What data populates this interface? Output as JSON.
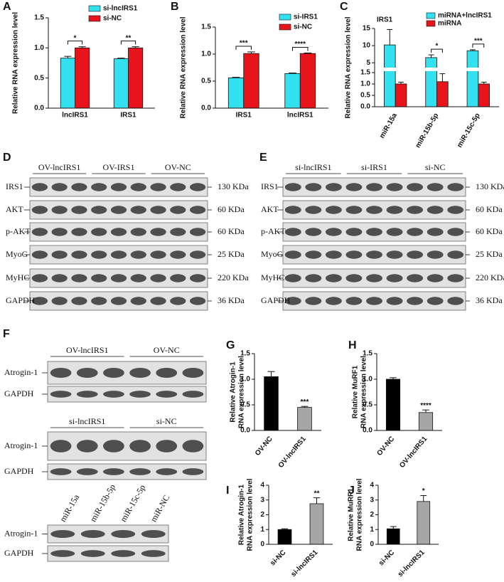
{
  "chart_data": [
    {
      "type": "bar",
      "panel": "A",
      "ylabel": "Relative RNA expression level",
      "categories": [
        "lncIRS1",
        "IRS1"
      ],
      "series": [
        {
          "name": "si-lncIRS1",
          "color": "#33e0f0",
          "values": [
            0.83,
            0.82
          ],
          "errors": [
            0.03,
            0.01
          ]
        },
        {
          "name": "si-NC",
          "color": "#e8141c",
          "values": [
            1.0,
            1.0
          ],
          "errors": [
            0.02,
            0.02
          ]
        }
      ],
      "ylim": [
        0,
        1.5
      ],
      "yticks": [
        {
          "value": 0,
          "label": "0.0"
        },
        {
          "value": 0.5,
          "label": "0.5"
        },
        {
          "value": 1,
          "label": "1.0"
        },
        {
          "value": 1.5,
          "label": "1.5"
        }
      ],
      "significance": [
        "*",
        "**"
      ],
      "legend": "top-right"
    },
    {
      "type": "bar",
      "panel": "B",
      "ylabel": "Relative RNA expression level",
      "categories": [
        "IRS1",
        "lncIRS1"
      ],
      "series": [
        {
          "name": "si-IRS1",
          "color": "#33e0f0",
          "values": [
            0.56,
            0.64
          ],
          "errors": [
            0.01,
            0.01
          ]
        },
        {
          "name": "si-NC",
          "color": "#e8141c",
          "values": [
            1.01,
            1.01
          ],
          "errors": [
            0.03,
            0.01
          ]
        }
      ],
      "ylim": [
        0,
        1.5
      ],
      "yticks": [
        {
          "value": 0,
          "label": "0.0"
        },
        {
          "value": 0.5,
          "label": "0.5"
        },
        {
          "value": 1,
          "label": "1.0"
        },
        {
          "value": 1.5,
          "label": "1.5"
        }
      ],
      "significance": [
        "***",
        "****"
      ],
      "legend": "top-right"
    },
    {
      "type": "bar",
      "panel": "C",
      "title": "IRS1",
      "ylabel": "Relative RNA expression level",
      "categories": [
        "miR-15a",
        "miR-15b-5p",
        "miR-15c-5p"
      ],
      "series": [
        {
          "name": "miRNA+lncIRS1",
          "color": "#33e0f0",
          "values": [
            10.2,
            6.5,
            8.5
          ],
          "errors": [
            4.5,
            0.8,
            0.3
          ]
        },
        {
          "name": "miRNA",
          "color": "#e8141c",
          "values": [
            1.0,
            1.1,
            1.0
          ],
          "errors": [
            0.08,
            0.35,
            0.08
          ]
        }
      ],
      "ylim": [
        0,
        1.5
      ],
      "yticks": [
        {
          "value": 0,
          "label": "0.0"
        },
        {
          "value": 0.5,
          "label": "0.5"
        },
        {
          "value": 1,
          "label": "1.0"
        },
        {
          "value": 1.5,
          "label": "1.5"
        }
      ],
      "ylim_upper": [
        4,
        15
      ],
      "yticks_upper": [
        5,
        10,
        15
      ],
      "significance": [
        null,
        "*",
        "***"
      ],
      "legend": "top-right"
    },
    {
      "type": "bar",
      "panel": "G",
      "ylabel": [
        "Relative Atrogin-1",
        "RNA expression level"
      ],
      "categories": [
        "OV-NC",
        "OV-lncIRS1"
      ],
      "values": [
        1.05,
        0.45
      ],
      "errors": [
        0.1,
        0.02
      ],
      "colors": [
        "#000000",
        "#a6a6a6"
      ],
      "ylim": [
        0,
        1.5
      ],
      "yticks": [
        {
          "value": 0,
          "label": "0.0"
        },
        {
          "value": 0.5,
          "label": "0.5"
        },
        {
          "value": 1,
          "label": "1.0"
        },
        {
          "value": 1.5,
          "label": "1.5"
        }
      ],
      "significance": [
        null,
        "***"
      ]
    },
    {
      "type": "bar",
      "panel": "H",
      "ylabel": [
        "Relative MuRF1",
        "RNA expression level"
      ],
      "categories": [
        "OV-NC",
        "OV-lncIRS1"
      ],
      "values": [
        1.0,
        0.35
      ],
      "errors": [
        0.03,
        0.05
      ],
      "colors": [
        "#000000",
        "#a6a6a6"
      ],
      "ylim": [
        0,
        1.5
      ],
      "yticks": [
        {
          "value": 0,
          "label": "0.0"
        },
        {
          "value": 0.5,
          "label": "0.5"
        },
        {
          "value": 1,
          "label": "1.0"
        },
        {
          "value": 1.5,
          "label": "1.5"
        }
      ],
      "significance": [
        null,
        "****"
      ]
    },
    {
      "type": "bar",
      "panel": "I",
      "ylabel": [
        "Relative Atrogin-1",
        "RNA expression level"
      ],
      "categories": [
        "si-NC",
        "si-lncIRS1"
      ],
      "values": [
        1.0,
        2.75
      ],
      "errors": [
        0.05,
        0.4
      ],
      "colors": [
        "#000000",
        "#a6a6a6"
      ],
      "ylim": [
        0,
        4
      ],
      "yticks": [
        0,
        1,
        2,
        3,
        4
      ],
      "significance": [
        null,
        "**"
      ]
    },
    {
      "type": "bar",
      "panel": "J",
      "ylabel": [
        "Relative MuRF1",
        "RNA expression level"
      ],
      "categories": [
        "si-NC",
        "si-lncIRS1"
      ],
      "values": [
        1.05,
        2.9
      ],
      "errors": [
        0.15,
        0.4
      ],
      "colors": [
        "#000000",
        "#a6a6a6"
      ],
      "ylim": [
        0,
        4
      ],
      "yticks": [
        0,
        1,
        2,
        3,
        4
      ],
      "significance": [
        null,
        "*"
      ]
    }
  ],
  "blots": [
    {
      "panel": "D",
      "sections": [
        {
          "groups": [
            "OV-lncIRS1",
            "OV-IRS1",
            "OV-NC"
          ],
          "rows": [
            "IRS1",
            "AKT",
            "p-AKT",
            "MyoG",
            "MyHC",
            "GAPDH"
          ],
          "sizes": [
            "130 KDa",
            "60 KDa",
            "60 KDa",
            "25 KDa",
            "220 KDa",
            "36 KDa"
          ]
        }
      ]
    },
    {
      "panel": "E",
      "sections": [
        {
          "groups": [
            "si-lncIRS1",
            "si-IRS1",
            "si-NC"
          ],
          "rows": [
            "IRS1",
            "AKT",
            "p-AKT",
            "MyoG",
            "MyHC",
            "GAPDH"
          ],
          "sizes": [
            "130 KDa",
            "60 KDa",
            "60 KDa",
            "25 KDa",
            "220 KDa",
            "36 KDa"
          ]
        }
      ]
    },
    {
      "panel": "F",
      "sections": [
        {
          "groups": [
            "OV-lncIRS1",
            "OV-NC"
          ],
          "rows": [
            "Atrogin-1",
            "GAPDH"
          ]
        },
        {
          "groups": [
            "si-lncIRS1",
            "si-NC"
          ],
          "rows": [
            "Atrogin-1",
            "GAPDH"
          ]
        },
        {
          "lanes": [
            "miR-15a",
            "miR-15b-5p",
            "miR-15c-5p",
            "miR-NC"
          ],
          "rows": [
            "Atrogin-1",
            "GAPDH"
          ]
        }
      ]
    }
  ]
}
